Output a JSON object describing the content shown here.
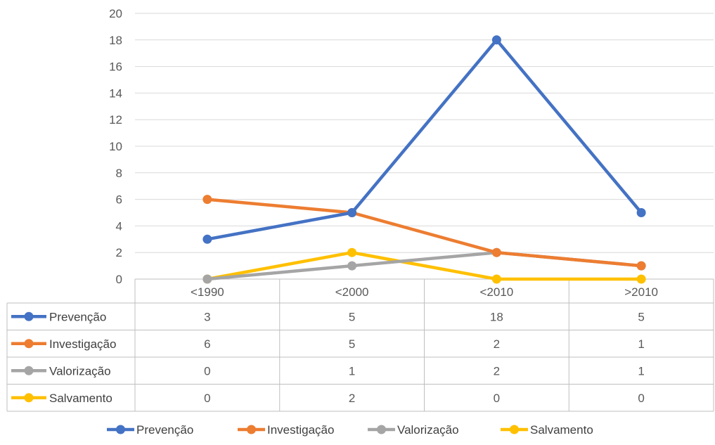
{
  "chart_data": {
    "type": "line",
    "categories": [
      "<1990",
      "<2000",
      "<2010",
      ">2010"
    ],
    "series": [
      {
        "name": "Prevenção",
        "values": [
          3,
          5,
          18,
          5
        ],
        "color": "#4472C4"
      },
      {
        "name": "Investigação",
        "values": [
          6,
          5,
          2,
          1
        ],
        "color": "#ED7D31"
      },
      {
        "name": "Valorização",
        "values": [
          0,
          1,
          2,
          1
        ],
        "color": "#A5A5A5"
      },
      {
        "name": "Salvamento",
        "values": [
          0,
          2,
          0,
          0
        ],
        "color": "#FFC000"
      }
    ],
    "y_ticks": [
      "0",
      "2",
      "4",
      "6",
      "8",
      "10",
      "12",
      "14",
      "16",
      "18",
      "20"
    ],
    "ylim": [
      0,
      20
    ],
    "grid": true,
    "data_table": true,
    "legend_position": "bottom"
  }
}
